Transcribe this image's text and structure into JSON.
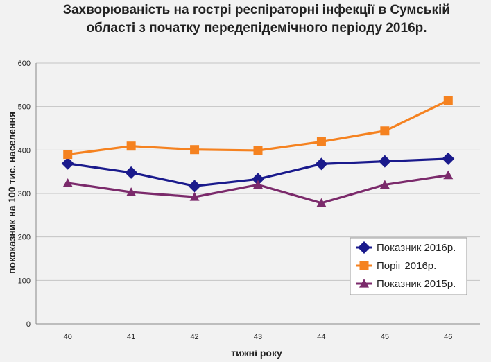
{
  "chart_data": {
    "type": "line",
    "title_line1": "Захворюваність на гострі респіраторні інфекції в Сумській",
    "title_line2": "області з початку передепідемічного періоду 2016р.",
    "xlabel": "тижні року",
    "ylabel": "пококазник на 100 тис. населення",
    "categories": [
      "40",
      "41",
      "42",
      "43",
      "44",
      "45",
      "46"
    ],
    "y_ticks": [
      "0",
      "100",
      "200",
      "300",
      "400",
      "500",
      "600"
    ],
    "ylim": [
      0,
      600
    ],
    "grid": true,
    "legend_position": "bottom-right",
    "series": [
      {
        "name": "Показник 2016р.",
        "values": [
          369,
          348,
          317,
          333,
          368,
          374,
          380
        ],
        "color": "#1a1a8c",
        "marker": "diamond"
      },
      {
        "name": "Поріг 2016р.",
        "values": [
          390,
          409,
          401,
          399,
          419,
          444,
          514
        ],
        "color": "#f58220",
        "marker": "square"
      },
      {
        "name": "Показник 2015р.",
        "values": [
          324,
          303,
          292,
          320,
          278,
          320,
          342
        ],
        "color": "#7b2a6b",
        "marker": "triangle"
      }
    ]
  }
}
